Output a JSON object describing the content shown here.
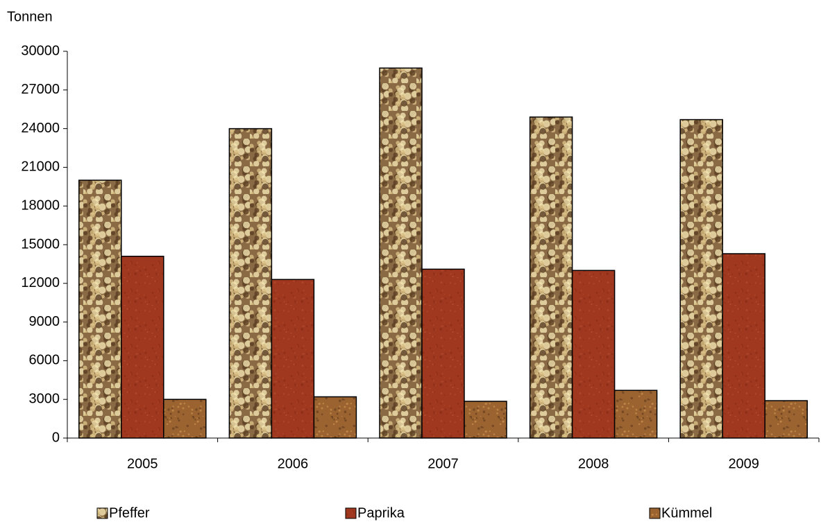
{
  "chart_data": {
    "type": "bar",
    "y_label": "Tonnen",
    "categories": [
      "2005",
      "2006",
      "2007",
      "2008",
      "2009"
    ],
    "series": [
      {
        "name": "Pfeffer",
        "color": "#8a6a44",
        "values": [
          20000,
          24000,
          28700,
          24900,
          24700
        ]
      },
      {
        "name": "Paprika",
        "color": "#a0381f",
        "values": [
          14100,
          12300,
          13100,
          13000,
          14300
        ]
      },
      {
        "name": "Kümmel",
        "color": "#9a6330",
        "values": [
          3000,
          3200,
          2850,
          3700,
          2900
        ]
      }
    ],
    "ylim": [
      0,
      30000
    ],
    "yticks": [
      0,
      3000,
      6000,
      9000,
      12000,
      15000,
      18000,
      21000,
      24000,
      27000,
      30000
    ],
    "grid": false,
    "legend": "bottom"
  }
}
